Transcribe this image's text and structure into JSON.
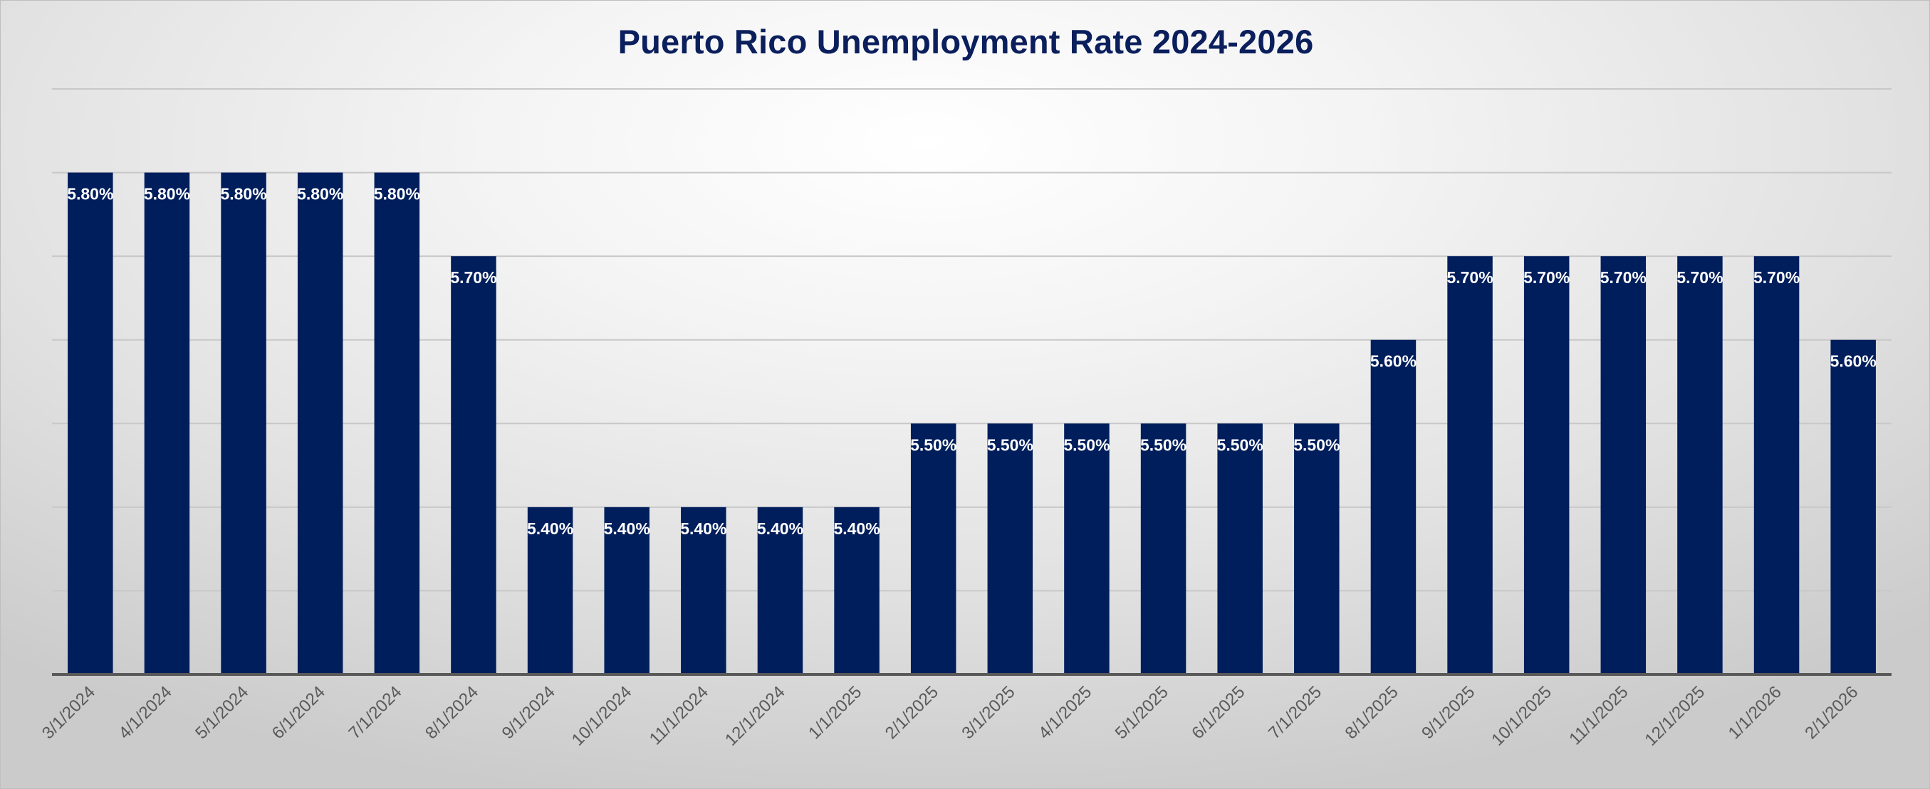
{
  "chart_data": {
    "type": "bar",
    "title": "Puerto Rico Unemployment Rate 2024-2026",
    "xlabel": "",
    "ylabel": "",
    "ylim": [
      5.2,
      5.9
    ],
    "grid": true,
    "legend": "none",
    "bar_color": "#001e5c",
    "title_color": "#0b1f5c",
    "categories": [
      "3/1/2024",
      "4/1/2024",
      "5/1/2024",
      "6/1/2024",
      "7/1/2024",
      "8/1/2024",
      "9/1/2024",
      "10/1/2024",
      "11/1/2024",
      "12/1/2024",
      "1/1/2025",
      "2/1/2025",
      "3/1/2025",
      "4/1/2025",
      "5/1/2025",
      "6/1/2025",
      "7/1/2025",
      "8/1/2025",
      "9/1/2025",
      "10/1/2025",
      "11/1/2025",
      "12/1/2025",
      "1/1/2026",
      "2/1/2026"
    ],
    "values": [
      5.8,
      5.8,
      5.8,
      5.8,
      5.8,
      5.7,
      5.4,
      5.4,
      5.4,
      5.4,
      5.4,
      5.5,
      5.5,
      5.5,
      5.5,
      5.5,
      5.5,
      5.6,
      5.7,
      5.7,
      5.7,
      5.7,
      5.7,
      5.6
    ],
    "data_labels": [
      "5.80%",
      "5.80%",
      "5.80%",
      "5.80%",
      "5.80%",
      "5.70%",
      "5.40%",
      "5.40%",
      "5.40%",
      "5.40%",
      "5.40%",
      "5.50%",
      "5.50%",
      "5.50%",
      "5.50%",
      "5.50%",
      "5.50%",
      "5.60%",
      "5.70%",
      "5.70%",
      "5.70%",
      "5.70%",
      "5.70%",
      "5.60%"
    ]
  }
}
